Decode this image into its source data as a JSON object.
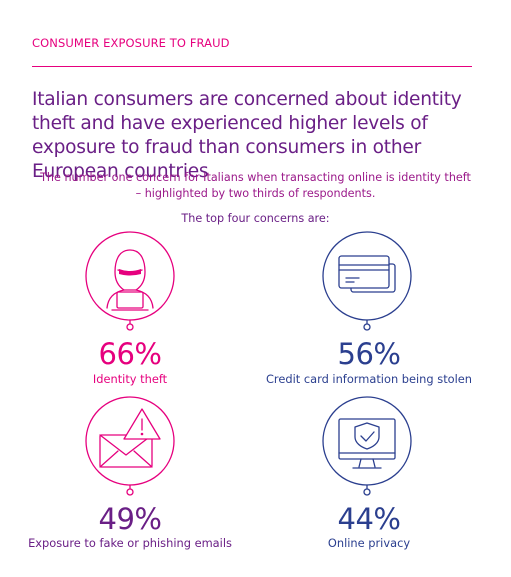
{
  "section_label": "CONSUMER EXPOSURE TO FRAUD",
  "headline": "Italian consumers are concerned about identity theft and have experienced higher levels of exposure to fraud than consumers in other European countries",
  "subhead": "The number one concern for Italians when transacting online is identity theft – highlighted by two thirds of respondents.",
  "intro": "The top four concerns are:",
  "concerns": [
    {
      "percent": "66%",
      "label": "Identity theft",
      "icon": "hacker-icon",
      "color": "#e6007e"
    },
    {
      "percent": "56%",
      "label": "Credit card information being stolen",
      "icon": "credit-card-icon",
      "color": "#2b3f8f"
    },
    {
      "percent": "49%",
      "label": "Exposure to fake or phishing emails",
      "icon": "warning-email-icon",
      "color": "#6a1f86"
    },
    {
      "percent": "44%",
      "label": "Online privacy",
      "icon": "monitor-shield-icon",
      "color": "#2b3f8f"
    }
  ]
}
